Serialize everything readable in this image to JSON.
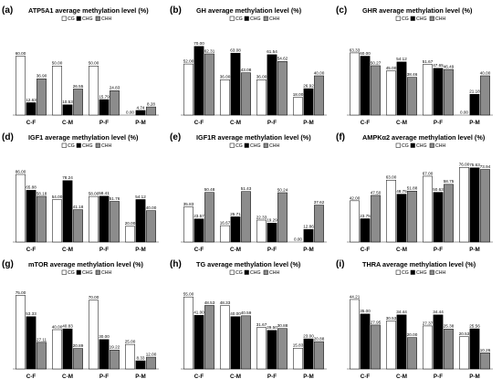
{
  "legend": [
    "CG",
    "CHG",
    "CHH"
  ],
  "series_colors": [
    "#ffffff",
    "#000000",
    "#8c8c8c"
  ],
  "chart_data": [
    {
      "panel": "(a)",
      "type": "bar",
      "title": "ATP5A1 average methylation level (%)",
      "categories": [
        "C-F",
        "C-M",
        "P-F",
        "P-M"
      ],
      "ylim": [
        0,
        80
      ],
      "series": [
        {
          "name": "CG",
          "values": [
            60.0,
            50.0,
            50.0,
            0.0
          ],
          "labels": [
            "60.00",
            "50.00",
            "50.00",
            "0.00"
          ]
        },
        {
          "name": "CHG",
          "values": [
            12.63,
            10.53,
            15.79,
            4.74
          ],
          "labels": [
            "12.63",
            "10.53",
            "15.79",
            "4.74"
          ]
        },
        {
          "name": "CHH",
          "values": [
            36.9,
            26.55,
            24.83,
            8.28
          ],
          "labels": [
            "36.90",
            "26.55",
            "24.83",
            "8.28"
          ]
        }
      ]
    },
    {
      "panel": "(b)",
      "type": "bar",
      "title": "GH average methylation level (%)",
      "categories": [
        "C-F",
        "C-M",
        "P-F",
        "P-M"
      ],
      "ylim": [
        0,
        80
      ],
      "series": [
        {
          "name": "CG",
          "values": [
            52.0,
            36.0,
            36.0,
            18.0
          ],
          "labels": [
            "52.00",
            "36.00",
            "36.00",
            "18.00"
          ]
        },
        {
          "name": "CHG",
          "values": [
            70.0,
            63.08,
            61.54,
            26.92
          ],
          "labels": [
            "70.00",
            "63.08",
            "61.54",
            "26.92"
          ]
        },
        {
          "name": "CHH",
          "values": [
            62.31,
            43.08,
            54.62,
            40.0
          ],
          "labels": [
            "62.31",
            "43.08",
            "54.62",
            "40.00"
          ]
        }
      ]
    },
    {
      "panel": "(c)",
      "type": "bar",
      "title": "GHR average methylation level (%)",
      "categories": [
        "C-F",
        "C-M",
        "P-F",
        "P-M"
      ],
      "ylim": [
        0,
        80
      ],
      "series": [
        {
          "name": "CG",
          "values": [
            63.33,
            45.0,
            51.67,
            0.0
          ],
          "labels": [
            "63.33",
            "45.00",
            "51.67",
            "0.00"
          ]
        },
        {
          "name": "CHG",
          "values": [
            60.0,
            54.12,
            47.65,
            21.18
          ],
          "labels": [
            "60.00",
            "54.12",
            "47.65",
            "21.18"
          ]
        },
        {
          "name": "CHH",
          "values": [
            50.27,
            38.46,
            46.49,
            40.0
          ],
          "labels": [
            "50.27",
            "38.46",
            "46.49",
            "40.00"
          ]
        }
      ]
    },
    {
      "panel": "(d)",
      "type": "bar",
      "title": "IGF1 average methylation level (%)",
      "categories": [
        "C-F",
        "C-M",
        "P-F",
        "P-M"
      ],
      "ylim": [
        0,
        100
      ],
      "series": [
        {
          "name": "CG",
          "values": [
            86.0,
            54.0,
            58.0,
            20.0
          ],
          "labels": [
            "86.00",
            "54.00",
            "58.00",
            "20.00"
          ]
        },
        {
          "name": "CHG",
          "values": [
            65.88,
            78.24,
            58.41,
            54.12
          ],
          "labels": [
            "65.88",
            "78.24",
            "58.41",
            "54.12"
          ]
        },
        {
          "name": "CHH",
          "values": [
            58.18,
            41.18,
            51.76,
            40.0
          ],
          "labels": [
            "58.18",
            "41.18",
            "51.76",
            "40.00"
          ]
        }
      ]
    },
    {
      "panel": "(e)",
      "type": "bar",
      "title": "IGF1R average methylation level (%)",
      "categories": [
        "C-F",
        "C-M",
        "P-F",
        "P-M"
      ],
      "ylim": [
        0,
        80
      ],
      "series": [
        {
          "name": "CG",
          "values": [
            35.83,
            16.67,
            22.33,
            0.0
          ],
          "labels": [
            "35.83",
            "16.67",
            "22.33",
            "0.00"
          ]
        },
        {
          "name": "CHG",
          "values": [
            23.57,
            25.71,
            19.29,
            12.86
          ],
          "labels": [
            "23.57",
            "25.71",
            "19.29",
            "12.86"
          ]
        },
        {
          "name": "CHH",
          "values": [
            50.48,
            51.43,
            50.24,
            37.62
          ],
          "labels": [
            "50.48",
            "51.43",
            "50.24",
            "37.62"
          ]
        }
      ]
    },
    {
      "panel": "(f)",
      "type": "bar",
      "title": "AMPKα2 average methylation level (%)",
      "categories": [
        "C-F",
        "C-M",
        "P-F",
        "P-M"
      ],
      "ylim": [
        0,
        80
      ],
      "series": [
        {
          "name": "CG",
          "values": [
            42.0,
            63.0,
            67.0,
            76.0
          ],
          "labels": [
            "42.00",
            "63.00",
            "67.00",
            "76.00"
          ]
        },
        {
          "name": "CHG",
          "values": [
            23.75,
            48.75,
            50.63,
            75.63
          ],
          "labels": [
            "23.75",
            "48.75",
            "50.63",
            "75.63"
          ]
        },
        {
          "name": "CHH",
          "values": [
            47.5,
            51.88,
            58.75,
            73.94
          ],
          "labels": [
            "47.50",
            "51.88",
            "58.75",
            "73.94"
          ]
        }
      ]
    },
    {
      "panel": "(g)",
      "type": "bar",
      "title": "mTOR average methylation level (%)",
      "categories": [
        "C-F",
        "C-M",
        "P-F",
        "P-M"
      ],
      "ylim": [
        0,
        80
      ],
      "series": [
        {
          "name": "CG",
          "values": [
            75.0,
            40.0,
            70.0,
            25.0
          ],
          "labels": [
            "75.00",
            "40.00",
            "70.00",
            "25.00"
          ]
        },
        {
          "name": "CHG",
          "values": [
            53.33,
            40.83,
            30.0,
            8.33
          ],
          "labels": [
            "53.33",
            "40.83",
            "30.00",
            "8.33"
          ]
        },
        {
          "name": "CHH",
          "values": [
            27.11,
            20.89,
            19.22,
            12.0
          ],
          "labels": [
            "27.11",
            "20.89",
            "19.22",
            "12.00"
          ]
        }
      ]
    },
    {
      "panel": "(h)",
      "type": "bar",
      "title": "TG average methylation level (%)",
      "categories": [
        "C-F",
        "C-M",
        "P-F",
        "P-M"
      ],
      "ylim": [
        0,
        60
      ],
      "series": [
        {
          "name": "CG",
          "values": [
            55.0,
            48.33,
            31.67,
            15.83
          ],
          "labels": [
            "55.00",
            "48.33",
            "31.67",
            "15.83"
          ]
        },
        {
          "name": "CHG",
          "values": [
            41.0,
            40.0,
            29.5,
            23.0
          ],
          "labels": [
            "41.00",
            "40.00",
            "29.50",
            "23.00"
          ]
        },
        {
          "name": "CHH",
          "values": [
            48.53,
            40.59,
            30.88,
            20.88
          ],
          "labels": [
            "48.53",
            "40.59",
            "30.88",
            "20.88"
          ]
        }
      ]
    },
    {
      "panel": "(i)",
      "type": "bar",
      "title": "THRA average methylation level (%)",
      "categories": [
        "C-F",
        "C-M",
        "P-F",
        "P-M"
      ],
      "ylim": [
        0,
        50
      ],
      "series": [
        {
          "name": "CG",
          "values": [
            44.21,
            30.53,
            27.37,
            20.53
          ],
          "labels": [
            "44.21",
            "30.53",
            "27.37",
            "20.53"
          ]
        },
        {
          "name": "CHG",
          "values": [
            35.0,
            34.44,
            34.44,
            25.56
          ],
          "labels": [
            "35.00",
            "34.44",
            "34.44",
            "25.56"
          ]
        },
        {
          "name": "CHH",
          "values": [
            27.95,
            20.0,
            25.38,
            10.26
          ],
          "labels": [
            "27.95",
            "20.00",
            "25.38",
            "10.26"
          ]
        }
      ]
    }
  ]
}
